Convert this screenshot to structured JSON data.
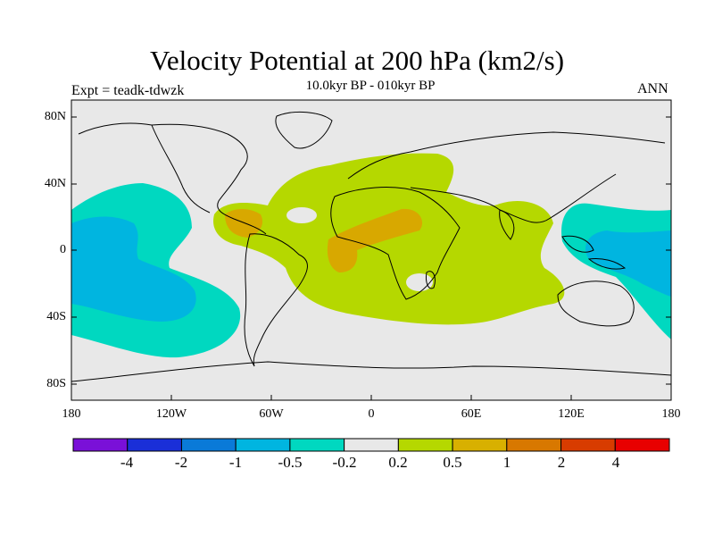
{
  "header": {
    "title": "Velocity Potential at 200 hPa (km2/s)",
    "subtitle": "10.0kyr BP - 010kyr BP",
    "experiment": "Expt = teadk-tdwzk",
    "season": "ANN"
  },
  "axes": {
    "lat_labels": [
      "80N",
      "40N",
      "0",
      "40S",
      "80S"
    ],
    "lon_labels": [
      "180",
      "120W",
      "60W",
      "0",
      "60E",
      "120E",
      "180"
    ]
  },
  "colorbar": {
    "labels": [
      "-4",
      "-2",
      "-1",
      "-0.5",
      "-0.2",
      "0.2",
      "0.5",
      "1",
      "2",
      "4"
    ],
    "colors": [
      "#7a10d8",
      "#1a2fd8",
      "#0a7ad8",
      "#00b5e0",
      "#00d8c0",
      "#e8e8e8",
      "#b5d800",
      "#d8b000",
      "#d87800",
      "#d83c00",
      "#e80000"
    ]
  },
  "map_colors": {
    "ocean_neutral": "#e8e8e8",
    "pos_02": "#b5d800",
    "pos_05": "#d8a800",
    "neg_02": "#00d8c0",
    "neg_05": "#00b5e0"
  }
}
